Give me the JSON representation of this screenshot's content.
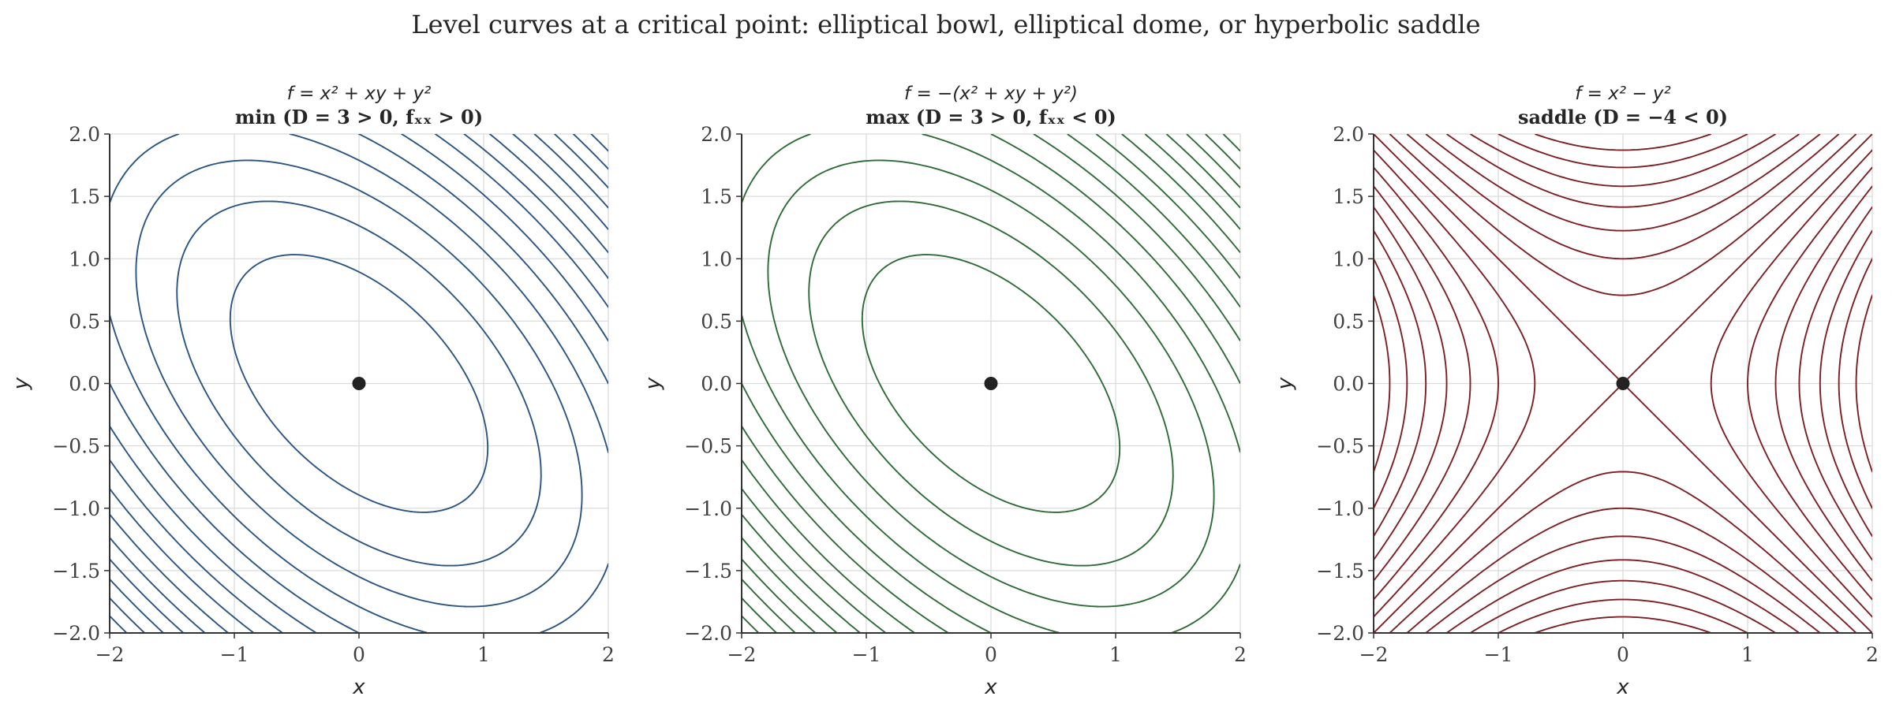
{
  "figure": {
    "title": "Level curves at a critical point: elliptical bowl, elliptical dome, or hyperbolic saddle"
  },
  "chart_data": [
    {
      "type": "contour",
      "title_line1": "f = x² + xy + y²",
      "title_line2": "min (D = 3 > 0,  fₓₓ > 0)",
      "xlabel": "x",
      "ylabel": "y",
      "xlim": [
        -2,
        2
      ],
      "ylim": [
        -2,
        2
      ],
      "xticks": [
        "−2",
        "−1",
        "0",
        "1",
        "2"
      ],
      "yticks": [
        "−2.0",
        "−1.5",
        "−1.0",
        "−0.5",
        "0.0",
        "0.5",
        "1.0",
        "1.5",
        "2.0"
      ],
      "function": "x^2 + x*y + y^2",
      "levels": [
        0.8,
        1.6,
        2.4,
        3.2,
        4.0,
        4.8,
        5.6,
        6.4,
        7.2,
        8.0,
        8.8,
        9.6,
        10.4,
        11.2
      ],
      "line_style": "solid",
      "color": "#2b5582",
      "critical_point": [
        0,
        0
      ],
      "grid": true
    },
    {
      "type": "contour",
      "title_line1": "f = −(x² + xy + y²)",
      "title_line2": "max (D = 3 > 0,  fₓₓ < 0)",
      "xlabel": "x",
      "ylabel": "y",
      "xlim": [
        -2,
        2
      ],
      "ylim": [
        -2,
        2
      ],
      "xticks": [
        "−2",
        "−1",
        "0",
        "1",
        "2"
      ],
      "yticks": [
        "−2.0",
        "−1.5",
        "−1.0",
        "−0.5",
        "0.0",
        "0.5",
        "1.0",
        "1.5",
        "2.0"
      ],
      "function": "-(x^2 + x*y + y^2)",
      "levels": [
        -0.8,
        -1.6,
        -2.4,
        -3.2,
        -4.0,
        -4.8,
        -5.6,
        -6.4,
        -7.2,
        -8.0,
        -8.8,
        -9.6,
        -10.4,
        -11.2
      ],
      "line_style": "dashed",
      "color": "#2e6b36",
      "critical_point": [
        0,
        0
      ],
      "grid": true
    },
    {
      "type": "contour",
      "title_line1": "f = x² − y²",
      "title_line2": "saddle (D = −4 < 0)",
      "xlabel": "x",
      "ylabel": "y",
      "xlim": [
        -2,
        2
      ],
      "ylim": [
        -2,
        2
      ],
      "xticks": [
        "−2",
        "−1",
        "0",
        "1",
        "2"
      ],
      "yticks": [
        "−2.0",
        "−1.5",
        "−1.0",
        "−0.5",
        "0.0",
        "0.5",
        "1.0",
        "1.5",
        "2.0"
      ],
      "function": "x^2 - y^2",
      "levels": [
        -3.5,
        -3.0,
        -2.5,
        -2.0,
        -1.5,
        -1.0,
        -0.5,
        0.0,
        0.5,
        1.0,
        1.5,
        2.0,
        2.5,
        3.0,
        3.5
      ],
      "line_style": "solid for f ≥ 0, dashed for f < 0",
      "color": "#7d1f24",
      "critical_point": [
        0,
        0
      ],
      "grid": true
    }
  ],
  "colors": {
    "grid": "#dcdcdc",
    "axis": "#333333",
    "point": "#222222"
  }
}
